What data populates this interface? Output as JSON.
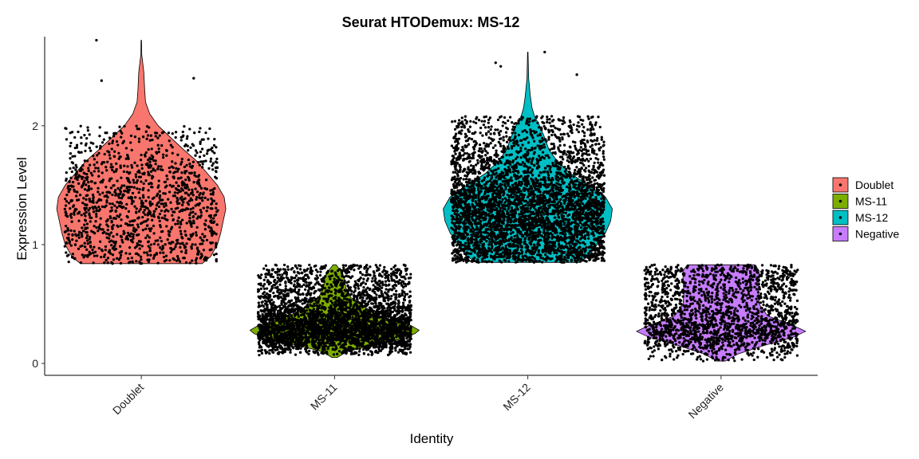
{
  "chart_data": {
    "type": "violin",
    "title": "Seurat HTODemux: MS-12",
    "xlabel": "Identity",
    "ylabel": "Expression Level",
    "categories": [
      "Doublet",
      "MS-11",
      "MS-12",
      "Negative"
    ],
    "yticks": [
      0,
      1,
      2
    ],
    "ylim": [
      -0.1,
      2.75
    ],
    "grid": false,
    "legend_position": "right",
    "legend": [
      "Doublet",
      "MS-11",
      "MS-12",
      "Negative"
    ],
    "colors": [
      "#F8766D",
      "#7CAE00",
      "#00BFC4",
      "#C77CFF"
    ],
    "violins": [
      {
        "name": "Doublet",
        "color": "#F8766D",
        "n_points": 1300,
        "min": 0.84,
        "max": 2.72,
        "jitter_max": 2.0,
        "jitter_min": 0.84,
        "profile": [
          [
            0.84,
            0.72
          ],
          [
            0.9,
            0.82
          ],
          [
            1.0,
            0.9
          ],
          [
            1.1,
            0.94
          ],
          [
            1.2,
            0.97
          ],
          [
            1.3,
            1.0
          ],
          [
            1.4,
            0.98
          ],
          [
            1.5,
            0.9
          ],
          [
            1.6,
            0.78
          ],
          [
            1.7,
            0.66
          ],
          [
            1.8,
            0.5
          ],
          [
            1.9,
            0.35
          ],
          [
            2.0,
            0.2
          ],
          [
            2.1,
            0.1
          ],
          [
            2.2,
            0.05
          ],
          [
            2.3,
            0.04
          ],
          [
            2.45,
            0.03
          ],
          [
            2.6,
            0.005
          ],
          [
            2.72,
            0.003
          ]
        ],
        "outliers": [
          [
            -0.53,
            2.72
          ],
          [
            -0.47,
            2.38
          ],
          [
            0.62,
            2.4
          ]
        ]
      },
      {
        "name": "MS-11",
        "color": "#7CAE00",
        "n_points": 3800,
        "min": 0.05,
        "max": 0.83,
        "jitter_max": 0.83,
        "jitter_min": 0.07,
        "profile": [
          [
            0.05,
            0.03
          ],
          [
            0.1,
            0.15
          ],
          [
            0.15,
            0.42
          ],
          [
            0.2,
            0.75
          ],
          [
            0.25,
            0.95
          ],
          [
            0.28,
            1.0
          ],
          [
            0.32,
            0.9
          ],
          [
            0.38,
            0.6
          ],
          [
            0.45,
            0.4
          ],
          [
            0.5,
            0.3
          ],
          [
            0.55,
            0.2
          ],
          [
            0.6,
            0.15
          ],
          [
            0.65,
            0.13
          ],
          [
            0.7,
            0.12
          ],
          [
            0.75,
            0.1
          ],
          [
            0.8,
            0.05
          ],
          [
            0.83,
            0.02
          ]
        ],
        "outliers": []
      },
      {
        "name": "MS-12",
        "color": "#00BFC4",
        "n_points": 4200,
        "min": 0.85,
        "max": 2.62,
        "jitter_max": 2.08,
        "jitter_min": 0.85,
        "profile": [
          [
            0.85,
            0.6
          ],
          [
            0.9,
            0.72
          ],
          [
            1.0,
            0.82
          ],
          [
            1.1,
            0.92
          ],
          [
            1.2,
            0.98
          ],
          [
            1.3,
            1.0
          ],
          [
            1.4,
            0.92
          ],
          [
            1.5,
            0.72
          ],
          [
            1.6,
            0.5
          ],
          [
            1.7,
            0.35
          ],
          [
            1.8,
            0.25
          ],
          [
            1.9,
            0.2
          ],
          [
            2.0,
            0.14
          ],
          [
            2.08,
            0.08
          ],
          [
            2.15,
            0.05
          ],
          [
            2.25,
            0.03
          ],
          [
            2.4,
            0.01
          ],
          [
            2.62,
            0.003
          ]
        ],
        "outliers": [
          [
            -0.38,
            2.53
          ],
          [
            -0.32,
            2.5
          ],
          [
            -0.35,
            2.05
          ],
          [
            0.2,
            2.62
          ],
          [
            0.58,
            2.43
          ]
        ]
      },
      {
        "name": "Negative",
        "color": "#C77CFF",
        "n_points": 2000,
        "min": 0.02,
        "max": 0.83,
        "jitter_max": 0.83,
        "jitter_min": 0.02,
        "profile": [
          [
            0.02,
            0.05
          ],
          [
            0.08,
            0.2
          ],
          [
            0.15,
            0.5
          ],
          [
            0.22,
            0.85
          ],
          [
            0.27,
            1.0
          ],
          [
            0.32,
            0.85
          ],
          [
            0.4,
            0.55
          ],
          [
            0.5,
            0.45
          ],
          [
            0.6,
            0.44
          ],
          [
            0.7,
            0.45
          ],
          [
            0.78,
            0.45
          ],
          [
            0.83,
            0.4
          ]
        ],
        "outliers": []
      }
    ]
  }
}
